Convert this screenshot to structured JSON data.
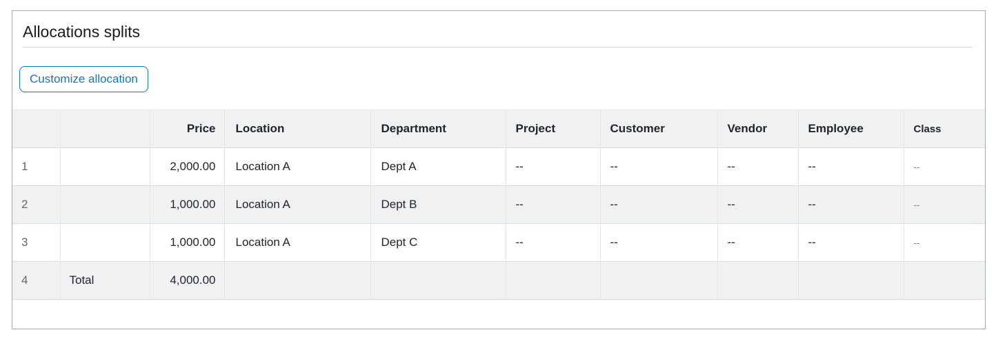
{
  "panel": {
    "title": "Allocations splits",
    "customize_button_label": "Customize allocation"
  },
  "table": {
    "columns": [
      {
        "key": "row_num",
        "label": "",
        "align": "left"
      },
      {
        "key": "label",
        "label": "",
        "align": "left"
      },
      {
        "key": "price",
        "label": "Price",
        "align": "right"
      },
      {
        "key": "location",
        "label": "Location",
        "align": "left"
      },
      {
        "key": "department",
        "label": "Department",
        "align": "left"
      },
      {
        "key": "project",
        "label": "Project",
        "align": "left"
      },
      {
        "key": "customer",
        "label": "Customer",
        "align": "left"
      },
      {
        "key": "vendor",
        "label": "Vendor",
        "align": "left"
      },
      {
        "key": "employee",
        "label": "Employee",
        "align": "left"
      },
      {
        "key": "class",
        "label": "Class",
        "align": "left"
      }
    ],
    "rows": [
      {
        "is_total": false,
        "cells": {
          "row_num": "1",
          "label": "",
          "price": "2,000.00",
          "location": "Location A",
          "department": "Dept A",
          "project": "--",
          "customer": "--",
          "vendor": "--",
          "employee": "--",
          "class": "--"
        }
      },
      {
        "is_total": false,
        "cells": {
          "row_num": "2",
          "label": "",
          "price": "1,000.00",
          "location": "Location A",
          "department": "Dept B",
          "project": "--",
          "customer": "--",
          "vendor": "--",
          "employee": "--",
          "class": "--"
        }
      },
      {
        "is_total": false,
        "cells": {
          "row_num": "3",
          "label": "",
          "price": "1,000.00",
          "location": "Location A",
          "department": "Dept C",
          "project": "--",
          "customer": "--",
          "vendor": "--",
          "employee": "--",
          "class": "--"
        }
      },
      {
        "is_total": true,
        "cells": {
          "row_num": "4",
          "label": "Total",
          "price": "4,000.00",
          "location": "",
          "department": "",
          "project": "",
          "customer": "",
          "vendor": "",
          "employee": "",
          "class": ""
        }
      }
    ]
  },
  "colors": {
    "accent_blue": "#0d78c2",
    "panel_border": "#a6a9ad",
    "header_bg": "#eff1f3",
    "stripe_bg": "#eff1f3",
    "text_primary": "#21252b",
    "text_secondary": "#63666b"
  }
}
